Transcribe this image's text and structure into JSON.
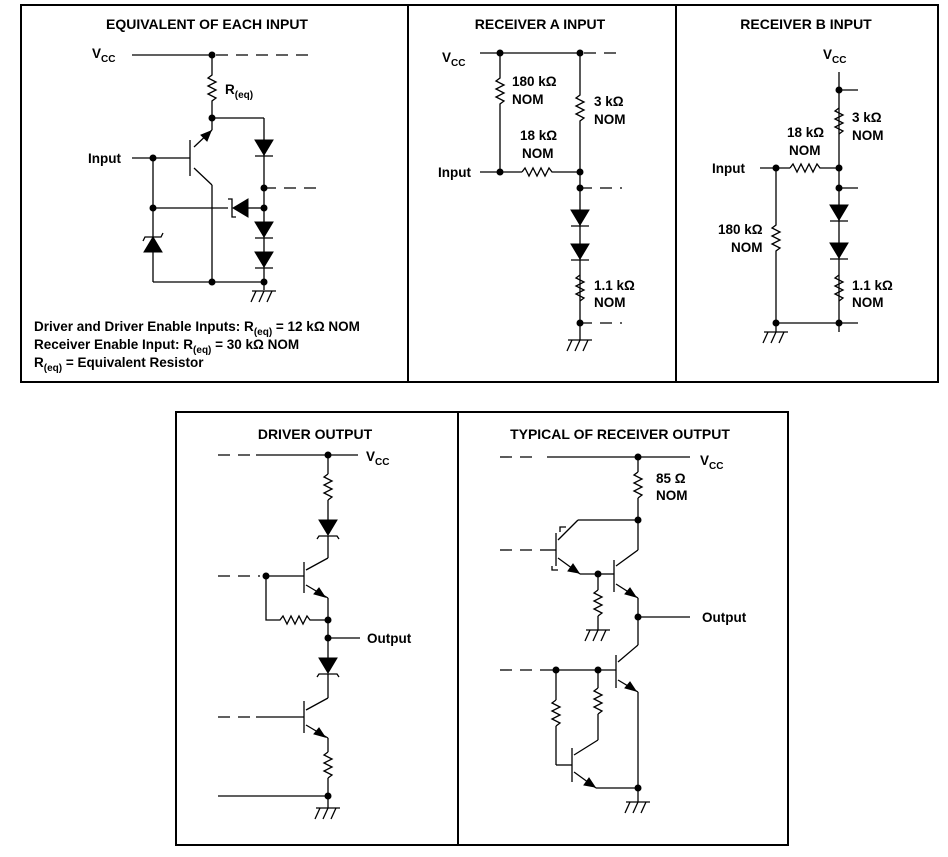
{
  "panels": {
    "equivalent": {
      "title": "EQUIVALENT OF EACH INPUT",
      "vcc": "V",
      "vcc_sub": "CC",
      "req_main": "R",
      "req_sub": "(eq)",
      "input": "Input",
      "note1_pre": "Driver and Driver Enable Inputs: R",
      "note1_sub": "(eq)",
      "note1_post": " = 12 kΩ NOM",
      "note2_pre": "Receiver Enable Input: R",
      "note2_sub": "(eq)",
      "note2_post": " = 30 kΩ NOM",
      "note3_pre": "R",
      "note3_sub": "(eq)",
      "note3_post": " = Equivalent Resistor"
    },
    "receiver_a": {
      "title": "RECEIVER A INPUT",
      "vcc": "V",
      "vcc_sub": "CC",
      "r180": "180 kΩ",
      "r3": "3 kΩ",
      "r18": "18 kΩ",
      "r1_1": "1.1 kΩ",
      "nom": "NOM",
      "input": "Input"
    },
    "receiver_b": {
      "title": "RECEIVER B INPUT",
      "vcc": "V",
      "vcc_sub": "CC",
      "r3": "3 kΩ",
      "r18": "18 kΩ",
      "r180": "180 kΩ",
      "r1_1": "1.1 kΩ",
      "nom": "NOM",
      "input": "Input"
    },
    "driver_output": {
      "title": "DRIVER OUTPUT",
      "vcc": "V",
      "vcc_sub": "CC",
      "output": "Output"
    },
    "receiver_output": {
      "title": "TYPICAL OF RECEIVER OUTPUT",
      "vcc": "V",
      "vcc_sub": "CC",
      "r85": "85 Ω",
      "nom": "NOM",
      "output": "Output"
    }
  }
}
